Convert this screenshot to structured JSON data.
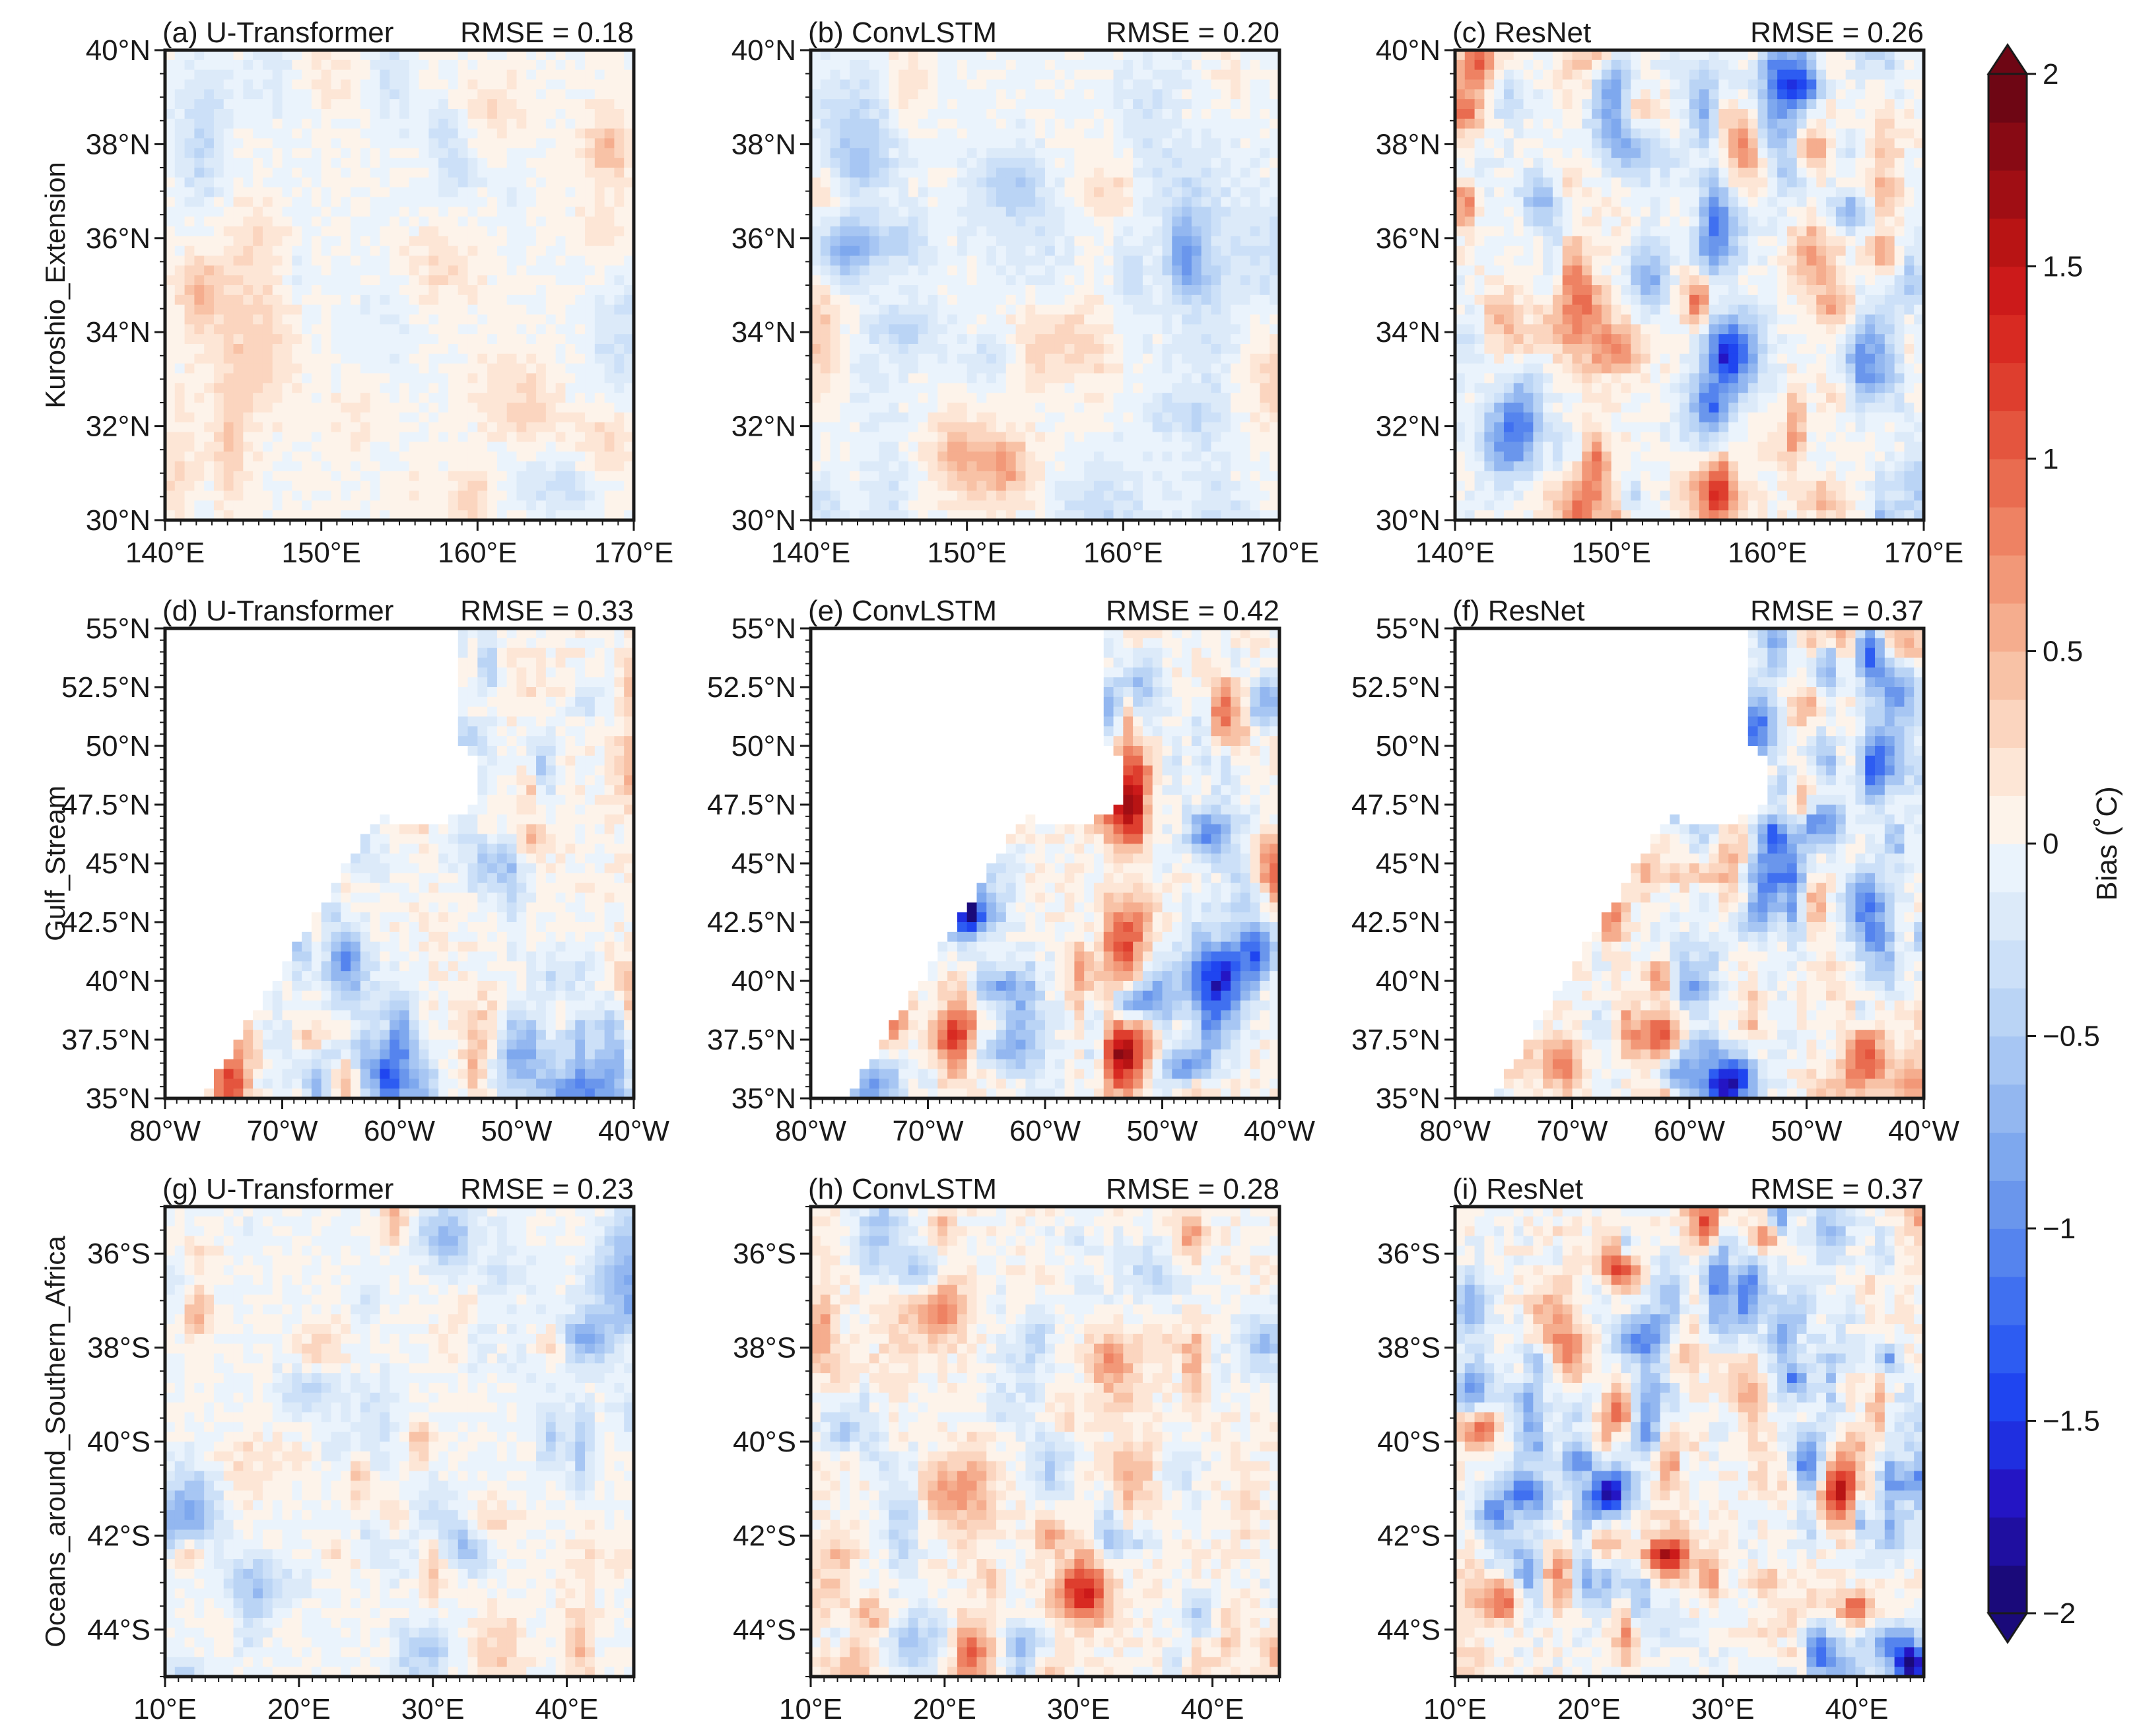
{
  "colorbar": {
    "label": "Bias (˚C)",
    "min": -2,
    "max": 2,
    "step": 0.1,
    "ticks": [
      "2",
      "1.5",
      "1",
      "0.5",
      "0",
      "−0.5",
      "−1",
      "−1.5",
      "−2"
    ],
    "tick_values": [
      2,
      1.5,
      1,
      0.5,
      0,
      -0.5,
      -1,
      -1.5,
      -2
    ],
    "colors_low_to_high": [
      "#1a0a7a",
      "#1f0fa0",
      "#2415c4",
      "#1f2fe0",
      "#1f45f0",
      "#2d5cf2",
      "#4070f0",
      "#5584ee",
      "#6a96ec",
      "#7ea8ee",
      "#93b7f0",
      "#a7c6f3",
      "#bad4f5",
      "#cce0f8",
      "#dceaf9",
      "#eaf3fc",
      "#fdf3ea",
      "#fde6d6",
      "#fbd5bf",
      "#f8c2a6",
      "#f5ad8e",
      "#f29878",
      "#ee8263",
      "#e96c50",
      "#e4553e",
      "#de3e2e",
      "#d82a22",
      "#cc1a1a",
      "#b81414",
      "#a00e14",
      "#880a14",
      "#6e0614"
    ]
  },
  "row_labels": [
    "Kuroshio_Extension",
    "Gulf_Stream",
    "Oceans_around_Southern_Africa"
  ],
  "column_models": [
    "U-Transformer",
    "ConvLSTM",
    "ResNet"
  ],
  "chart_data": [
    {
      "type": "heatmap",
      "panel": "(a)",
      "model": "U-Transformer",
      "region": "Kuroshio_Extension",
      "rmse_label": "RMSE = 0.18",
      "rmse": 0.18,
      "x_ticks": [
        "140°E",
        "150°E",
        "160°E",
        "170°E"
      ],
      "y_ticks": [
        "30°N",
        "32°N",
        "34°N",
        "36°N",
        "38°N",
        "40°N"
      ],
      "xlim": [
        140,
        170
      ],
      "ylim": [
        30,
        40
      ]
    },
    {
      "type": "heatmap",
      "panel": "(b)",
      "model": "ConvLSTM",
      "region": "Kuroshio_Extension",
      "rmse_label": "RMSE = 0.20",
      "rmse": 0.2,
      "x_ticks": [
        "140°E",
        "150°E",
        "160°E",
        "170°E"
      ],
      "y_ticks": [
        "30°N",
        "32°N",
        "34°N",
        "36°N",
        "38°N",
        "40°N"
      ],
      "xlim": [
        140,
        170
      ],
      "ylim": [
        30,
        40
      ]
    },
    {
      "type": "heatmap",
      "panel": "(c)",
      "model": "ResNet",
      "region": "Kuroshio_Extension",
      "rmse_label": "RMSE = 0.26",
      "rmse": 0.26,
      "x_ticks": [
        "140°E",
        "150°E",
        "160°E",
        "170°E"
      ],
      "y_ticks": [
        "30°N",
        "32°N",
        "34°N",
        "36°N",
        "38°N",
        "40°N"
      ],
      "xlim": [
        140,
        170
      ],
      "ylim": [
        30,
        40
      ]
    },
    {
      "type": "heatmap",
      "panel": "(d)",
      "model": "U-Transformer",
      "region": "Gulf_Stream",
      "rmse_label": "RMSE = 0.33",
      "rmse": 0.33,
      "x_ticks": [
        "80°W",
        "70°W",
        "60°W",
        "50°W",
        "40°W"
      ],
      "y_ticks": [
        "35°N",
        "37.5°N",
        "40°N",
        "42.5°N",
        "45°N",
        "47.5°N",
        "50°N",
        "52.5°N",
        "55°N"
      ],
      "xlim": [
        -80,
        -40
      ],
      "ylim": [
        35,
        55
      ]
    },
    {
      "type": "heatmap",
      "panel": "(e)",
      "model": "ConvLSTM",
      "region": "Gulf_Stream",
      "rmse_label": "RMSE = 0.42",
      "rmse": 0.42,
      "x_ticks": [
        "80°W",
        "70°W",
        "60°W",
        "50°W",
        "40°W"
      ],
      "y_ticks": [
        "35°N",
        "37.5°N",
        "40°N",
        "42.5°N",
        "45°N",
        "47.5°N",
        "50°N",
        "52.5°N",
        "55°N"
      ],
      "xlim": [
        -80,
        -40
      ],
      "ylim": [
        35,
        55
      ]
    },
    {
      "type": "heatmap",
      "panel": "(f)",
      "model": "ResNet",
      "region": "Gulf_Stream",
      "rmse_label": "RMSE = 0.37",
      "rmse": 0.37,
      "x_ticks": [
        "80°W",
        "70°W",
        "60°W",
        "50°W",
        "40°W"
      ],
      "y_ticks": [
        "35°N",
        "37.5°N",
        "40°N",
        "42.5°N",
        "45°N",
        "47.5°N",
        "50°N",
        "52.5°N",
        "55°N"
      ],
      "xlim": [
        -80,
        -40
      ],
      "ylim": [
        35,
        55
      ]
    },
    {
      "type": "heatmap",
      "panel": "(g)",
      "model": "U-Transformer",
      "region": "Oceans_around_Southern_Africa",
      "rmse_label": "RMSE = 0.23",
      "rmse": 0.23,
      "x_ticks": [
        "10°E",
        "20°E",
        "30°E",
        "40°E"
      ],
      "y_ticks": [
        "44°S",
        "42°S",
        "40°S",
        "38°S",
        "36°S"
      ],
      "xlim": [
        10,
        45
      ],
      "ylim": [
        -45,
        -35
      ]
    },
    {
      "type": "heatmap",
      "panel": "(h)",
      "model": "ConvLSTM",
      "region": "Oceans_around_Southern_Africa",
      "rmse_label": "RMSE = 0.28",
      "rmse": 0.28,
      "x_ticks": [
        "10°E",
        "20°E",
        "30°E",
        "40°E"
      ],
      "y_ticks": [
        "44°S",
        "42°S",
        "40°S",
        "38°S",
        "36°S"
      ],
      "xlim": [
        10,
        45
      ],
      "ylim": [
        -45,
        -35
      ]
    },
    {
      "type": "heatmap",
      "panel": "(i)",
      "model": "ResNet",
      "region": "Oceans_around_Southern_Africa",
      "rmse_label": "RMSE = 0.37",
      "rmse": 0.37,
      "x_ticks": [
        "10°E",
        "20°E",
        "30°E",
        "40°E"
      ],
      "y_ticks": [
        "44°S",
        "42°S",
        "40°S",
        "38°S",
        "36°S"
      ],
      "xlim": [
        10,
        45
      ],
      "ylim": [
        -45,
        -35
      ]
    }
  ]
}
